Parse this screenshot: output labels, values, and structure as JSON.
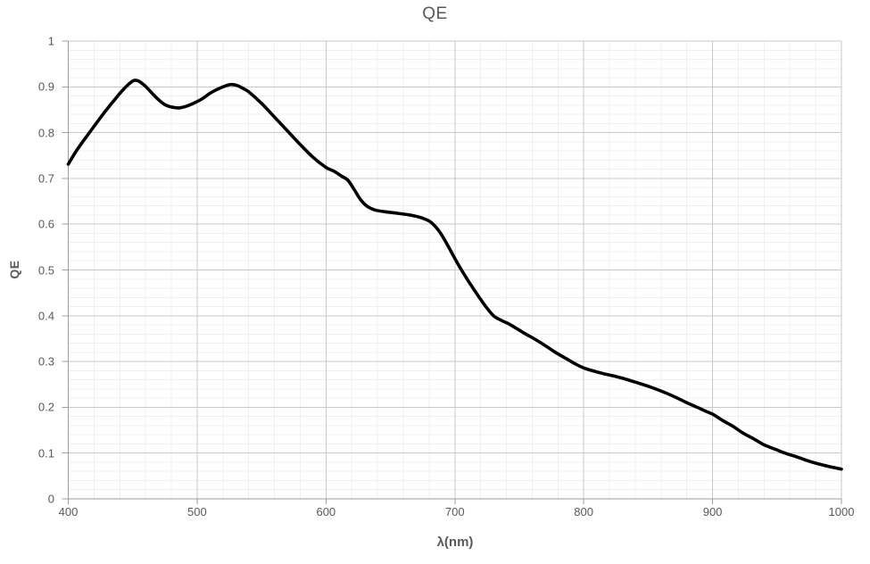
{
  "chart_data": {
    "type": "line",
    "title": "QE",
    "xlabel": "λ(nm)",
    "ylabel": "QE",
    "xlim": [
      400,
      1000
    ],
    "ylim": [
      0,
      1
    ],
    "x_ticks": [
      400,
      500,
      600,
      700,
      800,
      900,
      1000
    ],
    "x_tick_labels": [
      "400",
      "500",
      "600",
      "700",
      "800",
      "900",
      "1000"
    ],
    "y_ticks": [
      0,
      0.1,
      0.2,
      0.3,
      0.4,
      0.5,
      0.6,
      0.7,
      0.8,
      0.9,
      1
    ],
    "y_tick_labels": [
      "0",
      "0.1",
      "0.2",
      "0.3",
      "0.4",
      "0.5",
      "0.6",
      "0.7",
      "0.8",
      "0.9",
      "1"
    ],
    "x_minor_step": 20,
    "y_minor_step": 0.02,
    "grid": "major+minor",
    "legend_position": "none",
    "colors": {
      "curve": "#000000",
      "text": "#595959",
      "major_grid": "#c9c9c9",
      "minor_grid": "#f0f0f0",
      "axis": "#9e9e9e"
    },
    "series": [
      {
        "name": "QE",
        "x": [
          400,
          406,
          412,
          418,
          424,
          430,
          436,
          442,
          447,
          451,
          455,
          460,
          465,
          470,
          475,
          480,
          486,
          492,
          498,
          504,
          510,
          516,
          521,
          526,
          531,
          536,
          540,
          550,
          560,
          570,
          580,
          590,
          600,
          606,
          612,
          617,
          622,
          627,
          632,
          638,
          646,
          655,
          665,
          674,
          681,
          688,
          694,
          700,
          706,
          712,
          718,
          724,
          730,
          736,
          742,
          748,
          755,
          762,
          770,
          778,
          786,
          794,
          800,
          808,
          816,
          824,
          832,
          840,
          848,
          856,
          864,
          872,
          880,
          888,
          895,
          900,
          908,
          916,
          924,
          932,
          940,
          948,
          956,
          964,
          972,
          980,
          990,
          1000
        ],
        "y": [
          0.731,
          0.759,
          0.783,
          0.806,
          0.829,
          0.851,
          0.872,
          0.892,
          0.906,
          0.914,
          0.912,
          0.901,
          0.886,
          0.872,
          0.861,
          0.856,
          0.854,
          0.858,
          0.865,
          0.874,
          0.886,
          0.895,
          0.901,
          0.905,
          0.903,
          0.896,
          0.889,
          0.864,
          0.834,
          0.804,
          0.774,
          0.746,
          0.724,
          0.716,
          0.705,
          0.696,
          0.675,
          0.653,
          0.639,
          0.631,
          0.627,
          0.624,
          0.62,
          0.614,
          0.605,
          0.584,
          0.556,
          0.525,
          0.496,
          0.469,
          0.444,
          0.42,
          0.4,
          0.39,
          0.382,
          0.372,
          0.36,
          0.349,
          0.335,
          0.32,
          0.307,
          0.294,
          0.286,
          0.279,
          0.273,
          0.268,
          0.262,
          0.255,
          0.248,
          0.24,
          0.231,
          0.221,
          0.21,
          0.2,
          0.191,
          0.185,
          0.171,
          0.158,
          0.143,
          0.131,
          0.118,
          0.109,
          0.1,
          0.093,
          0.085,
          0.078,
          0.071,
          0.065
        ]
      }
    ]
  }
}
